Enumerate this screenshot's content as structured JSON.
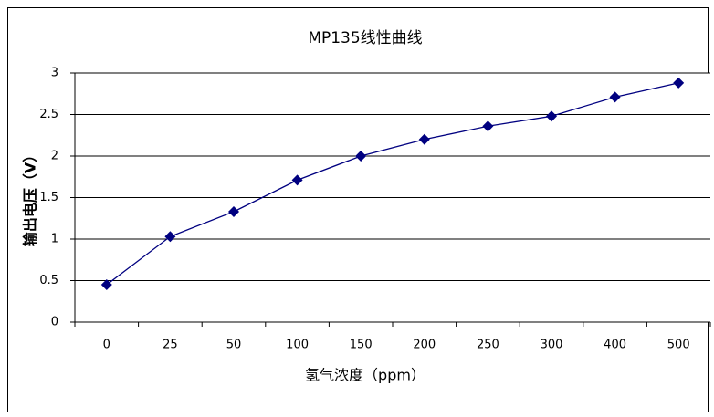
{
  "chart_data": {
    "type": "line",
    "title": "MP135线性曲线",
    "x_label": "氢气浓度（ppm）",
    "y_label": "输出电压（V）",
    "categories": [
      "0",
      "25",
      "50",
      "100",
      "150",
      "200",
      "250",
      "300",
      "400",
      "500"
    ],
    "series": [
      {
        "name": "MP135",
        "color": "#000080",
        "values": [
          0.45,
          1.03,
          1.33,
          1.71,
          2.0,
          2.2,
          2.36,
          2.48,
          2.71,
          2.88
        ]
      }
    ],
    "ylim": [
      0,
      3
    ],
    "yticks": [
      0,
      0.5,
      1,
      1.5,
      2,
      2.5,
      3
    ],
    "grid": true
  }
}
